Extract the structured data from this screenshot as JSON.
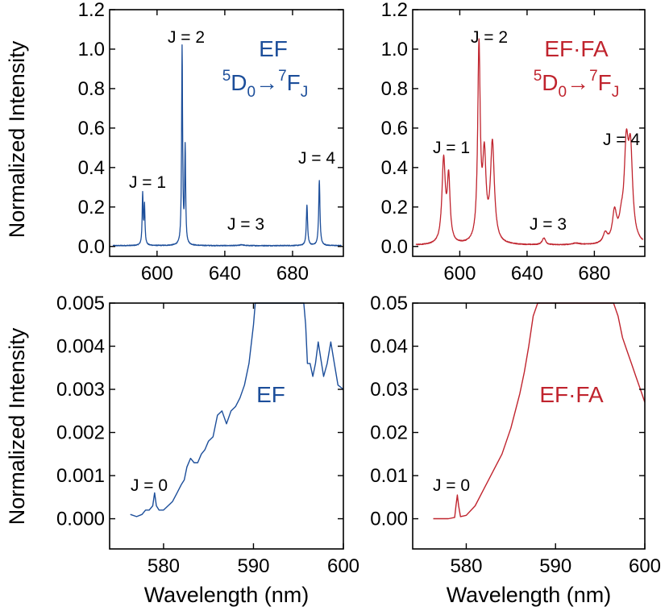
{
  "colors": {
    "ef": "#1c4e9a",
    "effa": "#c0242e"
  },
  "axis_labels": {
    "y": "Normalized Intensity",
    "x": "Wavelength (nm)"
  },
  "chart_data": [
    {
      "id": "ef-full",
      "type": "line",
      "series_name": "EF",
      "color": "#1c4e9a",
      "xlim": [
        572,
        710
      ],
      "ylim": [
        -0.05,
        1.2
      ],
      "xticks": [
        600,
        640,
        680
      ],
      "xtick_labels": [
        "600",
        "640",
        "680"
      ],
      "yticks": [
        0,
        0.2,
        0.4,
        0.6,
        0.8,
        1.0,
        1.2
      ],
      "ytick_labels": [
        "0.0",
        "0.2",
        "0.4",
        "0.6",
        "0.8",
        "1.0",
        "1.2"
      ],
      "ylabel": "Normalized Intensity",
      "xlabel": "",
      "legend": {
        "name": "EF",
        "transition_prefix": "5",
        "transition_d": "D",
        "transition_d_sub": "0",
        "transition_arrow": "→",
        "transition_f_sup": "7",
        "transition_f": "F",
        "transition_f_sub": "J"
      },
      "baseline": 0.004,
      "peaks": [
        {
          "center": 591.5,
          "width": 0.35,
          "height": 0.255
        },
        {
          "center": 592.6,
          "width": 0.35,
          "height": 0.195
        },
        {
          "center": 614.8,
          "width": 0.35,
          "height": 1.0
        },
        {
          "center": 616.6,
          "width": 0.35,
          "height": 0.485
        },
        {
          "center": 650.0,
          "width": 1.2,
          "height": 0.005
        },
        {
          "center": 688.5,
          "width": 0.45,
          "height": 0.205
        },
        {
          "center": 695.8,
          "width": 0.45,
          "height": 0.33
        }
      ],
      "annotations": [
        {
          "label": "J = 1",
          "x": 591.5,
          "y": 0.255
        },
        {
          "label": "J = 2",
          "x": 614.8,
          "y": 1.0
        },
        {
          "label": "J = 3",
          "x": 650,
          "y": 0.0
        },
        {
          "label": "J = 4",
          "x": 695.8,
          "y": 0.33
        }
      ]
    },
    {
      "id": "effa-full",
      "type": "line",
      "series_name": "EF·FA",
      "color": "#c0242e",
      "xlim": [
        572,
        710
      ],
      "ylim": [
        -0.05,
        1.2
      ],
      "xticks": [
        600,
        640,
        680
      ],
      "xtick_labels": [
        "600",
        "640",
        "680"
      ],
      "yticks": [
        0,
        0.2,
        0.4,
        0.6,
        0.8,
        1.0,
        1.2
      ],
      "ytick_labels": [
        "0.0",
        "0.2",
        "0.4",
        "0.6",
        "0.8",
        "1.0",
        "1.2"
      ],
      "ylabel": "",
      "xlabel": "",
      "legend": {
        "name": "EF·FA",
        "transition_prefix": "5",
        "transition_d": "D",
        "transition_d_sub": "0",
        "transition_arrow": "→",
        "transition_f_sup": "7",
        "transition_f": "F",
        "transition_f_sub": "J"
      },
      "baseline": 0.005,
      "peaks": [
        {
          "center": 590.4,
          "width": 1.2,
          "height": 0.42
        },
        {
          "center": 593.4,
          "width": 1.0,
          "height": 0.32
        },
        {
          "center": 611.4,
          "width": 0.9,
          "height": 0.98
        },
        {
          "center": 614.6,
          "width": 1.2,
          "height": 0.41
        },
        {
          "center": 619.4,
          "width": 1.4,
          "height": 0.5
        },
        {
          "center": 650.0,
          "width": 1.2,
          "height": 0.035
        },
        {
          "center": 669.0,
          "width": 3.0,
          "height": 0.008
        },
        {
          "center": 686.5,
          "width": 1.5,
          "height": 0.05
        },
        {
          "center": 692.0,
          "width": 1.5,
          "height": 0.15
        },
        {
          "center": 696.0,
          "width": 1.5,
          "height": 0.08
        },
        {
          "center": 699.0,
          "width": 1.5,
          "height": 0.45
        },
        {
          "center": 701.5,
          "width": 1.5,
          "height": 0.43
        }
      ],
      "annotations": [
        {
          "label": "J = 1",
          "x": 590.4,
          "y": 0.42
        },
        {
          "label": "J = 2",
          "x": 611.4,
          "y": 1.0
        },
        {
          "label": "J = 3",
          "x": 650,
          "y": 0.035
        },
        {
          "label": "J = 4",
          "x": 700.5,
          "y": 0.46
        }
      ]
    },
    {
      "id": "ef-zoom",
      "type": "line",
      "series_name": "EF",
      "color": "#1c4e9a",
      "xlim": [
        574,
        600
      ],
      "ylim": [
        -0.0007,
        0.005
      ],
      "xticks": [
        580,
        590,
        600
      ],
      "xtick_labels": [
        "580",
        "590",
        "600"
      ],
      "yticks": [
        0,
        0.001,
        0.002,
        0.003,
        0.004,
        0.005
      ],
      "ytick_labels": [
        "0.000",
        "0.001",
        "0.002",
        "0.003",
        "0.004",
        "0.005"
      ],
      "ylabel": "Normalized Intensity",
      "xlabel": "Wavelength (nm)",
      "legend": {
        "name": "EF"
      },
      "x": [
        576.3,
        577.0,
        577.6,
        578.0,
        578.4,
        578.8,
        579.0,
        579.2,
        579.5,
        580.0,
        580.5,
        581.0,
        581.5,
        582.0,
        582.3,
        582.6,
        583.0,
        583.4,
        583.8,
        584.2,
        584.6,
        585.0,
        585.5,
        586.0,
        586.5,
        587.0,
        587.5,
        588.0,
        588.5,
        589.0,
        589.5,
        590.0,
        590.2,
        595.6,
        595.8,
        596.0,
        596.3,
        596.6,
        596.9,
        597.2,
        597.5,
        597.8,
        598.2,
        598.6,
        599.0,
        599.4,
        600.0
      ],
      "y": [
        0.0001,
        5e-05,
        0.0001,
        0.0002,
        0.0002,
        0.0003,
        0.0006,
        0.0003,
        0.0002,
        0.0002,
        0.0003,
        0.0004,
        0.0006,
        0.0008,
        0.0009,
        0.0012,
        0.0014,
        0.0013,
        0.0013,
        0.0015,
        0.0016,
        0.0018,
        0.0019,
        0.0024,
        0.0025,
        0.0022,
        0.0025,
        0.0026,
        0.0028,
        0.0031,
        0.0036,
        0.0045,
        0.0055,
        0.0055,
        0.0045,
        0.0036,
        0.0036,
        0.0033,
        0.0036,
        0.0041,
        0.0037,
        0.0033,
        0.0036,
        0.0041,
        0.0036,
        0.0031,
        0.003
      ],
      "annotations": [
        {
          "label": "J = 0",
          "x": 579.0,
          "y": 0.0006
        }
      ]
    },
    {
      "id": "effa-zoom",
      "type": "line",
      "series_name": "EF·FA",
      "color": "#c0242e",
      "xlim": [
        574,
        600
      ],
      "ylim": [
        -0.007,
        0.05
      ],
      "xticks": [
        580,
        590,
        600
      ],
      "xtick_labels": [
        "580",
        "590",
        "600"
      ],
      "yticks": [
        0,
        0.01,
        0.02,
        0.03,
        0.04,
        0.05
      ],
      "ytick_labels": [
        "0.00",
        "0.01",
        "0.02",
        "0.03",
        "0.04",
        "0.05"
      ],
      "ylabel": "",
      "xlabel": "Wavelength (nm)",
      "legend": {
        "name": "EF·FA"
      },
      "x": [
        576.3,
        578.0,
        578.7,
        578.85,
        579.0,
        579.15,
        579.35,
        580.0,
        581.0,
        582.0,
        583.0,
        584.0,
        585.0,
        586.0,
        586.5,
        587.0,
        587.5,
        588.0,
        588.3,
        596.5,
        597.0,
        597.5,
        598.0,
        598.5,
        599.0,
        599.5,
        600.0
      ],
      "y": [
        0.0,
        0.0,
        0.0003,
        0.003,
        0.0055,
        0.003,
        0.0005,
        0.0008,
        0.003,
        0.007,
        0.011,
        0.015,
        0.021,
        0.029,
        0.034,
        0.04,
        0.047,
        0.053,
        0.058,
        0.053,
        0.047,
        0.042,
        0.039,
        0.036,
        0.033,
        0.03,
        0.027
      ],
      "annotations": [
        {
          "label": "J = 0",
          "x": 579.0,
          "y": 0.0055
        }
      ]
    }
  ]
}
